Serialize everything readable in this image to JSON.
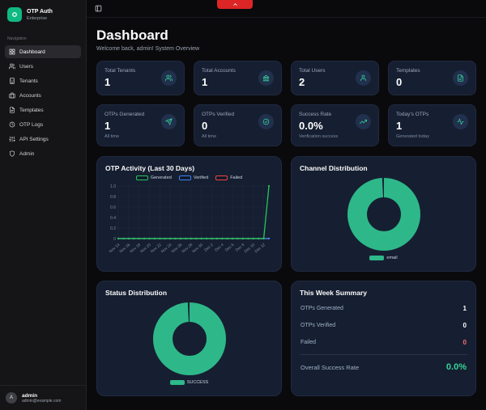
{
  "colors": {
    "accent_green": "#10b981",
    "icon_green": "#34d399",
    "donut_green": "#2eb88a",
    "failed_red": "#f87171",
    "card_bg": "#161f31"
  },
  "notch": {
    "icon": "chevron-up"
  },
  "topbar": {
    "toggle_icon": "panel-left"
  },
  "sidebar": {
    "brand": {
      "name": "OTP Auth",
      "plan": "Enterprise",
      "logo_icon": "ring"
    },
    "section_label": "Navigation",
    "items": [
      {
        "label": "Dashboard",
        "icon": "dashboard",
        "active": true
      },
      {
        "label": "Users",
        "icon": "users",
        "active": false
      },
      {
        "label": "Tenants",
        "icon": "building",
        "active": false
      },
      {
        "label": "Accounts",
        "icon": "briefcase",
        "active": false
      },
      {
        "label": "Templates",
        "icon": "file-text",
        "active": false
      },
      {
        "label": "OTP Logs",
        "icon": "history",
        "active": false
      },
      {
        "label": "API Settings",
        "icon": "sliders",
        "active": false
      },
      {
        "label": "Admin",
        "icon": "shield",
        "active": false
      }
    ],
    "user": {
      "initial": "A",
      "name": "admin",
      "email": "admin@example.com"
    }
  },
  "header": {
    "title": "Dashboard",
    "subtitle": "Welcome back, admin! System Overview"
  },
  "stats": [
    {
      "label": "Total Tenants",
      "value": "1",
      "sub": "",
      "icon": "users"
    },
    {
      "label": "Total Accounts",
      "value": "1",
      "sub": "",
      "icon": "bank"
    },
    {
      "label": "Total Users",
      "value": "2",
      "sub": "",
      "icon": "user"
    },
    {
      "label": "Templates",
      "value": "0",
      "sub": "",
      "icon": "file-text"
    },
    {
      "label": "OTPs Generated",
      "value": "1",
      "sub": "All time",
      "icon": "send"
    },
    {
      "label": "OTPs Verified",
      "value": "0",
      "sub": "All time",
      "icon": "check-circle"
    },
    {
      "label": "Success Rate",
      "value": "0.0%",
      "sub": "Verification success",
      "icon": "trending-up"
    },
    {
      "label": "Today's OTPs",
      "value": "1",
      "sub": "Generated today",
      "icon": "activity"
    }
  ],
  "summary": {
    "title": "This Week Summary",
    "rows": [
      {
        "label": "OTPs Generated",
        "value": "1",
        "color": "#ffffff"
      },
      {
        "label": "OTPs Verified",
        "value": "0",
        "color": "#ffffff"
      },
      {
        "label": "Failed",
        "value": "0",
        "color": "#f87171"
      }
    ],
    "footer": {
      "label": "Overall Success Rate",
      "value": "0.0%",
      "color": "#34d399"
    }
  },
  "chart_data": [
    {
      "type": "line",
      "title": "OTP Activity (Last 30 Days)",
      "x": [
        "Nov 14",
        "Nov 15",
        "Nov 16",
        "Nov 17",
        "Nov 18",
        "Nov 19",
        "Nov 20",
        "Nov 21",
        "Nov 22",
        "Nov 23",
        "Nov 24",
        "Nov 25",
        "Nov 26",
        "Nov 27",
        "Nov 28",
        "Nov 29",
        "Nov 30",
        "Dec 1",
        "Dec 2",
        "Dec 3",
        "Dec 4",
        "Dec 5",
        "Dec 6",
        "Dec 7",
        "Dec 8",
        "Dec 9",
        "Dec 10",
        "Dec 11",
        "Dec 12",
        "Dec 13"
      ],
      "tick_every": 2,
      "series": [
        {
          "name": "Generated",
          "color": "#22c55e",
          "values": [
            0,
            0,
            0,
            0,
            0,
            0,
            0,
            0,
            0,
            0,
            0,
            0,
            0,
            0,
            0,
            0,
            0,
            0,
            0,
            0,
            0,
            0,
            0,
            0,
            0,
            0,
            0,
            0,
            0,
            1
          ]
        },
        {
          "name": "Verified",
          "color": "#3b82f6",
          "values": [
            0,
            0,
            0,
            0,
            0,
            0,
            0,
            0,
            0,
            0,
            0,
            0,
            0,
            0,
            0,
            0,
            0,
            0,
            0,
            0,
            0,
            0,
            0,
            0,
            0,
            0,
            0,
            0,
            0,
            0
          ]
        },
        {
          "name": "Failed",
          "color": "#ef4444",
          "values": [
            0,
            0,
            0,
            0,
            0,
            0,
            0,
            0,
            0,
            0,
            0,
            0,
            0,
            0,
            0,
            0,
            0,
            0,
            0,
            0,
            0,
            0,
            0,
            0,
            0,
            0,
            0,
            0,
            0,
            0
          ]
        }
      ],
      "ylim": [
        0,
        1
      ],
      "yticks": [
        0,
        0.2,
        0.4,
        0.6,
        0.8,
        1.0
      ],
      "grid": true,
      "legend_position": "top"
    },
    {
      "type": "pie",
      "title": "Channel Distribution",
      "labels": [
        "email"
      ],
      "values": [
        1
      ],
      "colors": [
        "#2eb88a"
      ],
      "legend_position": "bottom"
    },
    {
      "type": "pie",
      "title": "Status Distribution",
      "labels": [
        "SUCCESS"
      ],
      "values": [
        1
      ],
      "colors": [
        "#2eb88a"
      ],
      "legend_position": "bottom"
    }
  ]
}
